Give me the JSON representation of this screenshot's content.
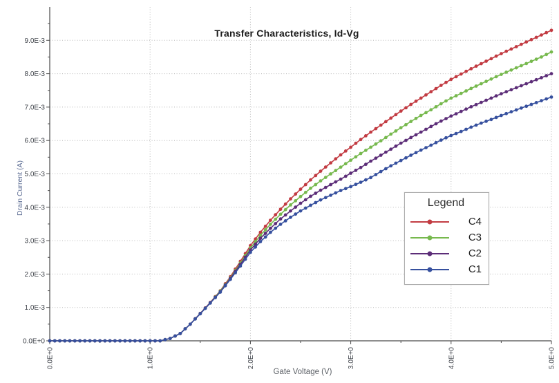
{
  "chart_data": {
    "type": "line",
    "title": "Transfer Characteristics, Id-Vg",
    "xlabel": "Gate Voltage (V)",
    "ylabel": "Drain Current (A)",
    "xlim": [
      0,
      5
    ],
    "ylim": [
      0,
      0.01
    ],
    "grid": "dotted gray lines at major ticks only",
    "x_axis": {
      "tick_values": [
        0,
        1,
        2,
        3,
        4,
        5
      ],
      "tick_labels": [
        "0.0E+0",
        "1.0E+0",
        "2.0E+0",
        "3.0E+0",
        "4.0E+0",
        "5.0E+0"
      ],
      "minor_tick_values": [
        0.5,
        1.5,
        2.5,
        3.5,
        4.5
      ],
      "tick_label_rotation_deg": -90
    },
    "y_axis": {
      "tick_values": [
        0,
        0.001,
        0.002,
        0.003,
        0.004,
        0.005,
        0.006,
        0.007,
        0.008,
        0.009
      ],
      "tick_labels": [
        "0.0E+0",
        "1.0E-3",
        "2.0E-3",
        "3.0E-3",
        "4.0E-3",
        "5.0E-3",
        "6.0E-3",
        "7.0E-3",
        "8.0E-3",
        "9.0E-3"
      ],
      "minor_tick_step": 0.0005
    },
    "x": [
      0.0,
      0.1,
      0.2,
      0.3,
      0.4,
      0.5,
      0.6,
      0.7,
      0.8,
      0.9,
      1.0,
      1.1,
      1.2,
      1.3,
      1.4,
      1.5,
      1.6,
      1.7,
      1.8,
      1.9,
      2.0,
      2.1,
      2.2,
      2.3,
      2.4,
      2.5,
      2.6,
      2.7,
      2.8,
      2.9,
      3.0,
      3.1,
      3.2,
      3.3,
      3.4,
      3.5,
      3.6,
      3.7,
      3.8,
      3.9,
      4.0,
      4.1,
      4.2,
      4.3,
      4.4,
      4.5,
      4.6,
      4.7,
      4.8,
      4.9,
      5.0
    ],
    "values_scale": 0.001,
    "series": [
      {
        "name": "C4",
        "color": "#c23b42",
        "values": [
          0,
          0,
          0,
          0,
          0,
          0,
          0,
          0,
          0,
          0,
          0,
          0,
          0.07,
          0.22,
          0.5,
          0.82,
          1.15,
          1.5,
          1.92,
          2.38,
          2.85,
          3.25,
          3.61,
          3.94,
          4.25,
          4.54,
          4.82,
          5.08,
          5.33,
          5.57,
          5.8,
          6.03,
          6.25,
          6.46,
          6.67,
          6.88,
          7.08,
          7.27,
          7.46,
          7.65,
          7.83,
          7.99,
          8.15,
          8.3,
          8.45,
          8.6,
          8.74,
          8.88,
          9.02,
          9.16,
          9.3
        ]
      },
      {
        "name": "C3",
        "color": "#77b94e",
        "values": [
          0,
          0,
          0,
          0,
          0,
          0,
          0,
          0,
          0,
          0,
          0,
          0,
          0.07,
          0.22,
          0.5,
          0.82,
          1.14,
          1.49,
          1.89,
          2.33,
          2.78,
          3.16,
          3.49,
          3.79,
          4.07,
          4.32,
          4.57,
          4.79,
          5.0,
          5.2,
          5.41,
          5.61,
          5.8,
          5.99,
          6.19,
          6.38,
          6.57,
          6.75,
          6.92,
          7.1,
          7.27,
          7.41,
          7.56,
          7.7,
          7.84,
          7.98,
          8.11,
          8.24,
          8.37,
          8.5,
          8.65
        ]
      },
      {
        "name": "C2",
        "color": "#5c2d78",
        "values": [
          0,
          0,
          0,
          0,
          0,
          0,
          0,
          0,
          0,
          0,
          0,
          0,
          0.07,
          0.22,
          0.5,
          0.82,
          1.14,
          1.47,
          1.87,
          2.29,
          2.72,
          3.07,
          3.37,
          3.65,
          3.89,
          4.12,
          4.33,
          4.51,
          4.68,
          4.84,
          5.02,
          5.19,
          5.38,
          5.56,
          5.74,
          5.92,
          6.09,
          6.25,
          6.42,
          6.58,
          6.73,
          6.87,
          7.01,
          7.14,
          7.27,
          7.4,
          7.52,
          7.64,
          7.76,
          7.88,
          8.0
        ]
      },
      {
        "name": "C1",
        "color": "#36509e",
        "values": [
          0,
          0,
          0,
          0,
          0,
          0,
          0,
          0,
          0,
          0,
          0,
          0,
          0.07,
          0.22,
          0.5,
          0.81,
          1.13,
          1.46,
          1.84,
          2.24,
          2.65,
          2.97,
          3.25,
          3.49,
          3.7,
          3.89,
          4.06,
          4.22,
          4.36,
          4.5,
          4.62,
          4.75,
          4.89,
          5.07,
          5.24,
          5.4,
          5.56,
          5.71,
          5.86,
          6.01,
          6.15,
          6.27,
          6.4,
          6.52,
          6.63,
          6.75,
          6.86,
          6.97,
          7.08,
          7.19,
          7.3
        ]
      }
    ],
    "legend": {
      "title": "Legend",
      "entries": [
        "C4",
        "C3",
        "C2",
        "C1"
      ],
      "position": "right-middle"
    },
    "style_colors": {
      "grid": "#b8b8b8",
      "axis": "#4a4a4a",
      "tick_text": "#3e4249",
      "ylabel_text": "#5d6d94",
      "xlabel_text": "#5d6167"
    }
  }
}
